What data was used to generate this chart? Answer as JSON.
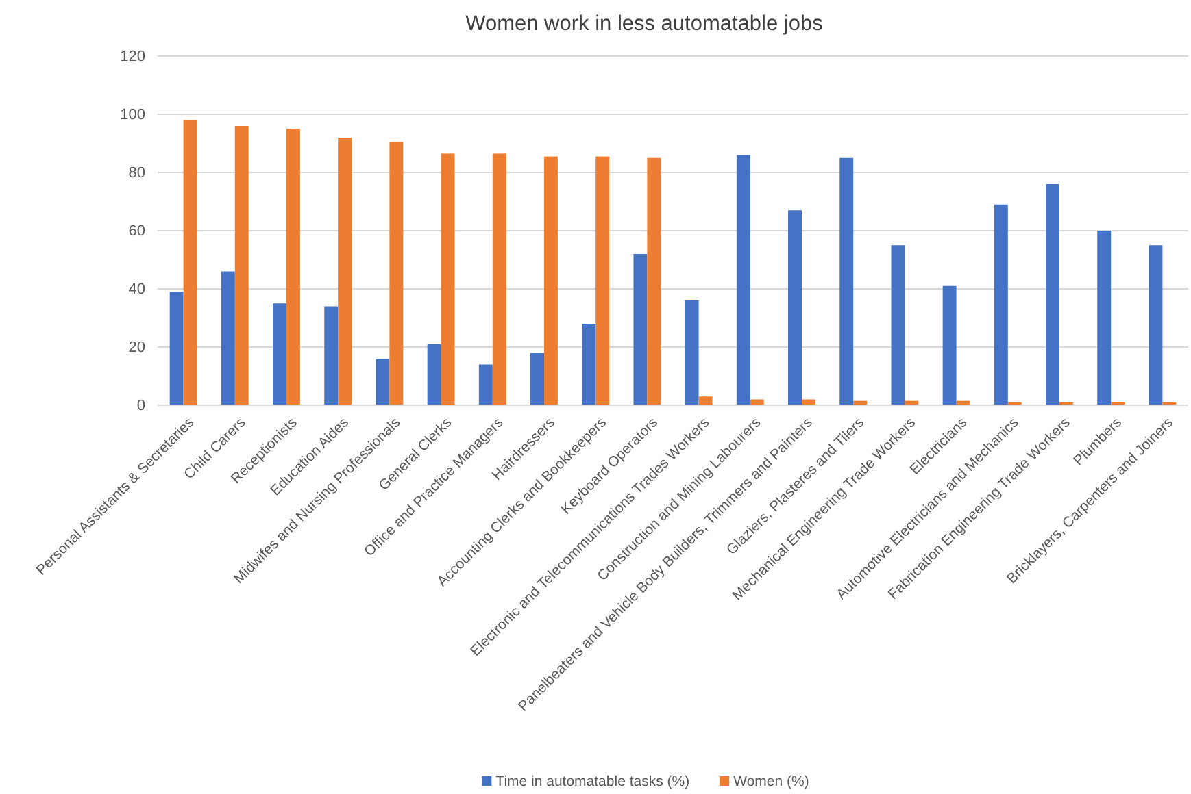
{
  "chart_data": {
    "type": "bar",
    "title": "Women work in less automatable jobs",
    "categories": [
      "Personal Assistants & Secretaries",
      "Child Carers",
      "Receptionists",
      "Education Aides",
      "Midwifes and Nursing Professionals",
      "General Clerks",
      "Office and Practice Managers",
      "Hairdressers",
      "Accounting Clerks and Bookkeepers",
      "Keyboard Operators",
      "Electronic and Telecommunications Trades Workers",
      "Construction and Mining Labourers",
      "Panelbeaters and Vehicle Body Builders, Trimmers and Painters",
      "Glaziers, Plasteres and Tilers",
      "Mechanical Engineering Trade Workers",
      "Electricians",
      "Automotive Electricians and Mechanics",
      "Fabrication Engineering Trade Workers",
      "Plumbers",
      "Bricklayers, Carpenters and Joiners"
    ],
    "series": [
      {
        "name": "Time in automatable tasks (%)",
        "color": "#4472c4",
        "values": [
          39,
          46,
          35,
          34,
          16,
          21,
          14,
          18,
          28,
          52,
          36,
          86,
          67,
          85,
          55,
          41,
          69,
          76,
          60,
          55
        ]
      },
      {
        "name": "Women (%)",
        "color": "#ed7d31",
        "values": [
          98,
          96,
          95,
          92,
          90.5,
          86.5,
          86.5,
          85.5,
          85.5,
          85,
          3,
          2,
          2,
          1.5,
          1.5,
          1.5,
          1,
          1,
          1,
          1
        ]
      }
    ],
    "ylim": [
      0,
      120
    ],
    "yticks": [
      0,
      20,
      40,
      60,
      80,
      100,
      120
    ],
    "grid": "y",
    "legend": "bottom"
  }
}
